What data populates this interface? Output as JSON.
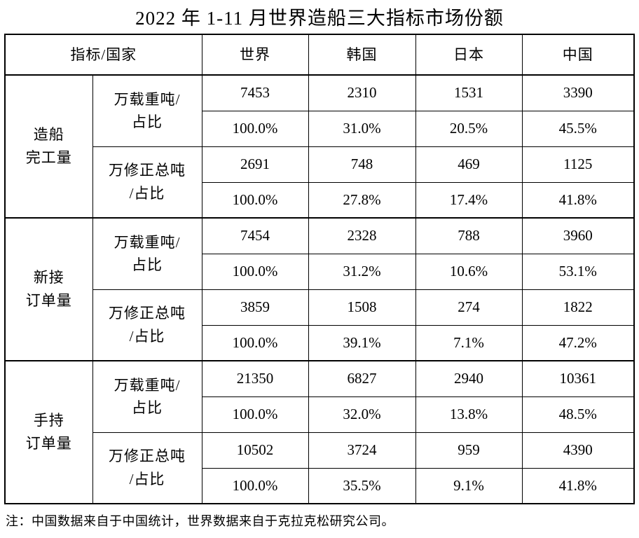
{
  "title": "2022 年 1-11 月世界造船三大指标市场份额",
  "table": {
    "header": {
      "corner": "指标/国家",
      "countries": [
        "世界",
        "韩国",
        "日本",
        "中国"
      ]
    },
    "groups": [
      {
        "label": "造船\n完工量",
        "blocks": [
          {
            "unit": "万载重吨/\n占比",
            "values": [
              "7453",
              "2310",
              "1531",
              "3390"
            ],
            "shares": [
              "100.0%",
              "31.0%",
              "20.5%",
              "45.5%"
            ]
          },
          {
            "unit": "万修正总吨\n/占比",
            "values": [
              "2691",
              "748",
              "469",
              "1125"
            ],
            "shares": [
              "100.0%",
              "27.8%",
              "17.4%",
              "41.8%"
            ]
          }
        ]
      },
      {
        "label": "新接\n订单量",
        "blocks": [
          {
            "unit": "万载重吨/\n占比",
            "values": [
              "7454",
              "2328",
              "788",
              "3960"
            ],
            "shares": [
              "100.0%",
              "31.2%",
              "10.6%",
              "53.1%"
            ]
          },
          {
            "unit": "万修正总吨\n/占比",
            "values": [
              "3859",
              "1508",
              "274",
              "1822"
            ],
            "shares": [
              "100.0%",
              "39.1%",
              "7.1%",
              "47.2%"
            ]
          }
        ]
      },
      {
        "label": "手持\n订单量",
        "blocks": [
          {
            "unit": "万载重吨/\n占比",
            "values": [
              "21350",
              "6827",
              "2940",
              "10361"
            ],
            "shares": [
              "100.0%",
              "32.0%",
              "13.8%",
              "48.5%"
            ]
          },
          {
            "unit": "万修正总吨\n/占比",
            "values": [
              "10502",
              "3724",
              "959",
              "4390"
            ],
            "shares": [
              "100.0%",
              "35.5%",
              "9.1%",
              "41.8%"
            ]
          }
        ]
      }
    ]
  },
  "note": "注：中国数据来自于中国统计，世界数据来自于克拉克松研究公司。"
}
